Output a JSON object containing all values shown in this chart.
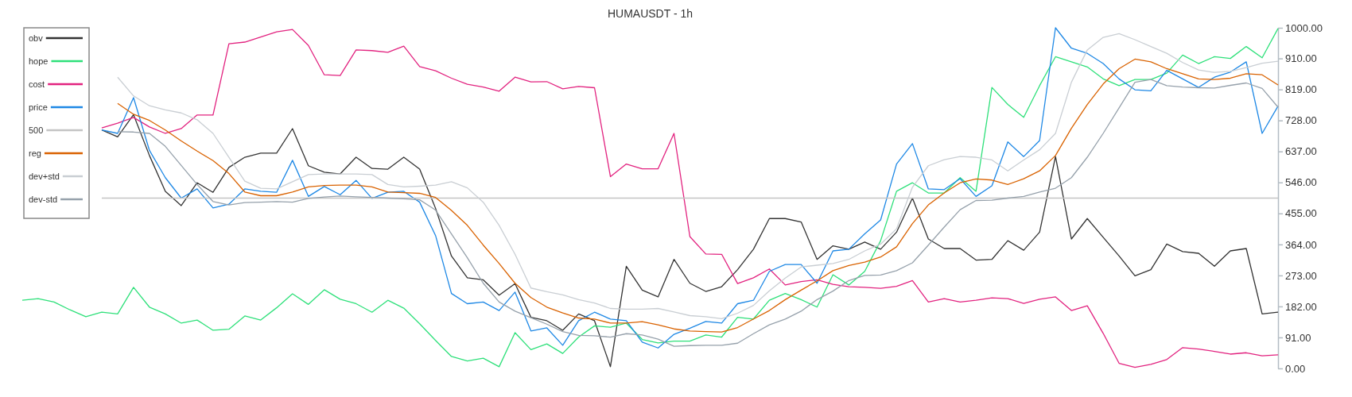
{
  "chart_data": {
    "type": "line",
    "title": "HUMAUSDT - 1h",
    "categories": [
      null,
      null,
      null,
      null,
      null,
      null,
      null,
      null,
      null,
      null,
      null,
      null,
      null,
      null,
      null,
      null,
      null,
      null,
      null,
      null,
      null,
      null,
      null,
      null,
      null,
      null,
      null,
      null,
      null,
      null,
      null,
      null,
      null,
      null,
      null,
      null,
      null,
      null,
      null,
      null,
      null,
      null,
      null,
      null,
      null,
      null,
      null,
      null,
      null,
      null,
      null,
      null,
      null,
      null,
      null,
      null,
      null,
      null,
      null,
      null,
      null,
      null,
      null,
      null,
      null,
      null,
      null,
      null,
      null,
      null,
      null,
      null,
      null,
      null,
      null,
      null,
      null,
      null,
      null,
      null
    ],
    "series": [
      {
        "name": "obv",
        "color": "#333333",
        "values": [
          null,
          null,
          null,
          null,
          null,
          700,
          680,
          745,
          625,
          520,
          478,
          545,
          517,
          590,
          620,
          632,
          632,
          704,
          595,
          576,
          571,
          620,
          587,
          585,
          620,
          585,
          470,
          330,
          266,
          260,
          215,
          249,
          150,
          140,
          112,
          160,
          140,
          5,
          300,
          230,
          210,
          320,
          250,
          226,
          240,
          290,
          350,
          440,
          440,
          430,
          320,
          360,
          350,
          371,
          350,
          400,
          500,
          380,
          352,
          352,
          318,
          320,
          375,
          347,
          400,
          622,
          380,
          440,
          385,
          330,
          272,
          290,
          365,
          343,
          338,
          300,
          345,
          352,
          160,
          165
        ]
      },
      {
        "name": "hope",
        "color": "#2ee07a",
        "values": [
          200,
          205,
          195,
          172,
          152,
          165,
          160,
          238,
          180,
          160,
          133,
          142,
          112,
          115,
          154,
          142,
          178,
          219,
          188,
          231,
          203,
          190,
          165,
          200,
          177,
          131,
          82,
          35,
          22,
          30,
          5,
          105,
          55,
          72,
          44,
          92,
          125,
          121,
          133,
          85,
          75,
          80,
          80,
          98,
          92,
          150,
          145,
          200,
          220,
          202,
          180,
          275,
          245,
          285,
          375,
          520,
          545,
          515,
          515,
          560,
          520,
          825,
          775,
          737,
          830,
          915,
          900,
          885,
          850,
          830,
          848,
          848,
          867,
          920,
          895,
          915,
          910,
          945,
          912,
          998
        ]
      },
      {
        "name": "cost",
        "color": "#e2227f",
        "values": [
          null,
          null,
          null,
          null,
          null,
          706,
          720,
          737,
          709,
          690,
          704,
          744,
          744,
          953,
          958,
          973,
          988,
          995,
          948,
          862,
          860,
          935,
          933,
          928,
          946,
          886,
          874,
          852,
          834,
          826,
          814,
          855,
          841,
          842,
          821,
          828,
          824,
          563,
          600,
          586,
          586,
          690,
          387,
          336,
          335,
          249,
          266,
          292,
          245,
          255,
          260,
          247,
          240,
          238,
          235,
          241,
          258,
          195,
          205,
          195,
          200,
          207,
          205,
          191,
          203,
          210,
          170,
          184,
          103,
          15,
          3,
          12,
          26,
          61,
          57,
          50,
          42,
          46,
          37,
          40
        ]
      },
      {
        "name": "price",
        "color": "#1e88e5",
        "values": [
          null,
          null,
          null,
          null,
          null,
          700,
          690,
          795,
          640,
          560,
          500,
          527,
          471,
          482,
          527,
          520,
          517,
          611,
          505,
          534,
          510,
          552,
          499,
          517,
          520,
          488,
          390,
          220,
          190,
          195,
          170,
          224,
          110,
          119,
          68,
          140,
          165,
          145,
          140,
          77,
          60,
          100,
          118,
          138,
          133,
          190,
          200,
          285,
          305,
          305,
          250,
          345,
          350,
          395,
          436,
          600,
          660,
          527,
          525,
          557,
          505,
          536,
          665,
          622,
          669,
          1000,
          940,
          925,
          895,
          850,
          818,
          815,
          875,
          850,
          825,
          855,
          870,
          900,
          690,
          770
        ]
      },
      {
        "name": "500",
        "color": "#c4c4c4",
        "values": [
          null,
          null,
          null,
          null,
          null,
          500,
          500,
          500,
          500,
          500,
          500,
          500,
          500,
          500,
          500,
          500,
          500,
          500,
          500,
          500,
          500,
          500,
          500,
          500,
          500,
          500,
          500,
          500,
          500,
          500,
          500,
          500,
          500,
          500,
          500,
          500,
          500,
          500,
          500,
          500,
          500,
          500,
          500,
          500,
          500,
          500,
          500,
          500,
          500,
          500,
          500,
          500,
          500,
          500,
          500,
          500,
          500,
          500,
          500,
          500,
          500,
          500,
          500,
          500,
          500,
          500,
          500,
          500,
          500,
          500,
          500,
          500,
          500,
          500,
          500,
          500,
          500,
          500,
          500,
          500
        ]
      },
      {
        "name": "reg",
        "color": "#d96200",
        "values": [
          null,
          null,
          null,
          null,
          null,
          null,
          778,
          746,
          728,
          700,
          668,
          638,
          610,
          572,
          518,
          507,
          507,
          518,
          533,
          537,
          538,
          538,
          533,
          518,
          516,
          514,
          502,
          464,
          420,
          362,
          308,
          250,
          208,
          180,
          163,
          148,
          145,
          133,
          133,
          137,
          128,
          116,
          110,
          108,
          107,
          120,
          145,
          170,
          202,
          230,
          257,
          287,
          302,
          312,
          327,
          357,
          425,
          480,
          515,
          545,
          556,
          553,
          540,
          557,
          580,
          625,
          705,
          775,
          835,
          880,
          908,
          900,
          880,
          865,
          850,
          848,
          852,
          865,
          862,
          832
        ]
      },
      {
        "name": "dev+std",
        "color": "#c9ced3",
        "values": [
          null,
          null,
          null,
          null,
          null,
          null,
          855,
          800,
          771,
          759,
          750,
          730,
          690,
          620,
          550,
          529,
          527,
          548,
          569,
          571,
          571,
          571,
          569,
          540,
          533,
          535,
          538,
          548,
          530,
          488,
          420,
          335,
          236,
          225,
          216,
          202,
          192,
          176,
          174,
          174,
          176,
          166,
          155,
          152,
          146,
          162,
          185,
          228,
          265,
          298,
          303,
          308,
          320,
          345,
          365,
          410,
          532,
          595,
          613,
          622,
          620,
          612,
          580,
          612,
          642,
          690,
          840,
          935,
          972,
          983,
          965,
          945,
          925,
          898,
          876,
          869,
          872,
          883,
          896,
          902
        ]
      },
      {
        "name": "dev-std",
        "color": "#96a1ab",
        "values": [
          null,
          null,
          null,
          null,
          null,
          null,
          695,
          694,
          690,
          652,
          596,
          540,
          490,
          480,
          487,
          488,
          490,
          488,
          499,
          503,
          506,
          504,
          502,
          500,
          498,
          495,
          465,
          395,
          325,
          250,
          195,
          168,
          149,
          130,
          108,
          97,
          96,
          92,
          102,
          98,
          86,
          65,
          67,
          68,
          68,
          74,
          102,
          128,
          145,
          168,
          202,
          227,
          258,
          273,
          274,
          287,
          310,
          362,
          415,
          466,
          493,
          494,
          500,
          505,
          518,
          529,
          560,
          620,
          690,
          765,
          840,
          848,
          830,
          826,
          824,
          823,
          831,
          838,
          822,
          767
        ]
      }
    ],
    "ylim": [
      0,
      1000
    ],
    "yticks": [
      {
        "value": 0,
        "label": "0.00"
      },
      {
        "value": 91,
        "label": "91.00"
      },
      {
        "value": 182,
        "label": "182.00"
      },
      {
        "value": 273,
        "label": "273.00"
      },
      {
        "value": 364,
        "label": "364.00"
      },
      {
        "value": 455,
        "label": "455.00"
      },
      {
        "value": 546,
        "label": "546.00"
      },
      {
        "value": 637,
        "label": "637.00"
      },
      {
        "value": 728,
        "label": "728.00"
      },
      {
        "value": 819,
        "label": "819.00"
      },
      {
        "value": 910,
        "label": "910.00"
      },
      {
        "value": 1000,
        "label": "1000.00"
      }
    ],
    "tick_labels": "y",
    "grid": false,
    "legend": "top left"
  }
}
